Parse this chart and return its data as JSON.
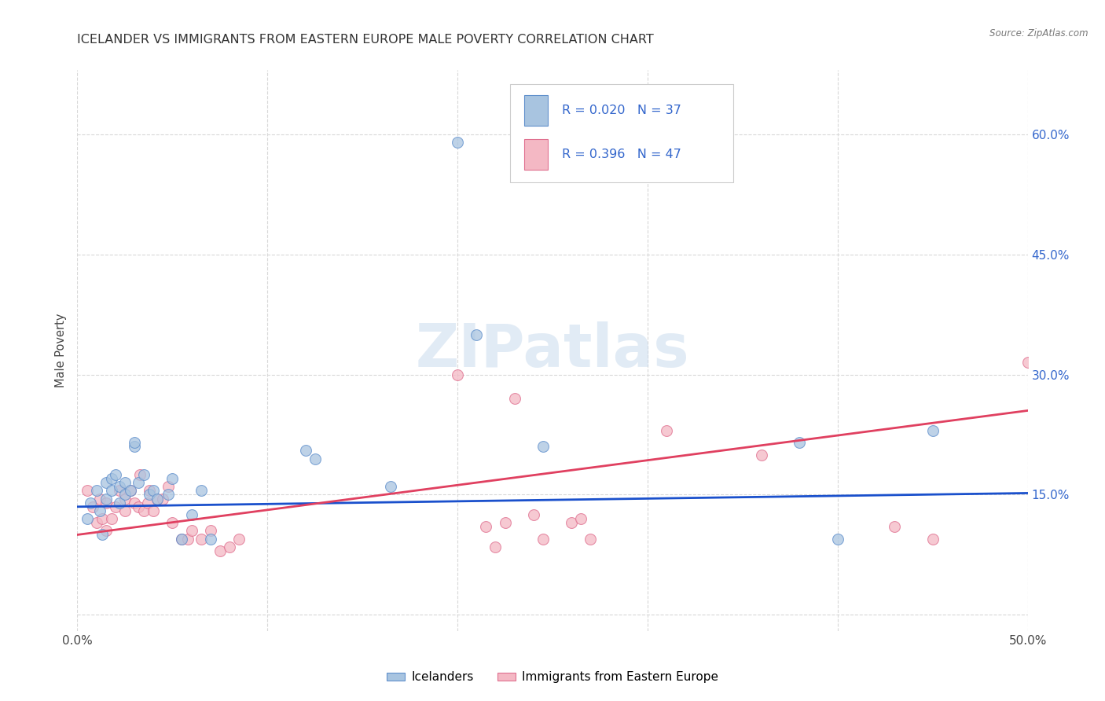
{
  "title": "ICELANDER VS IMMIGRANTS FROM EASTERN EUROPE MALE POVERTY CORRELATION CHART",
  "source": "Source: ZipAtlas.com",
  "ylabel": "Male Poverty",
  "xlim": [
    0.0,
    0.5
  ],
  "ylim": [
    -0.02,
    0.68
  ],
  "plot_ylim": [
    0.0,
    0.65
  ],
  "yticks": [
    0.0,
    0.15,
    0.3,
    0.45,
    0.6
  ],
  "xticks": [
    0.0,
    0.1,
    0.2,
    0.3,
    0.4,
    0.5
  ],
  "xtick_labels": [
    "0.0%",
    "",
    "",
    "",
    "",
    "50.0%"
  ],
  "right_ytick_labels": [
    "",
    "15.0%",
    "30.0%",
    "45.0%",
    "60.0%"
  ],
  "legend_blue_R": "R = 0.020",
  "legend_blue_N": "N = 37",
  "legend_pink_R": "R = 0.396",
  "legend_pink_N": "N = 47",
  "label_blue": "Icelanders",
  "label_pink": "Immigrants from Eastern Europe",
  "blue_color": "#a8c4e0",
  "pink_color": "#f4b8c4",
  "blue_edge_color": "#6090cc",
  "pink_edge_color": "#e07090",
  "blue_line_color": "#1a50cc",
  "pink_line_color": "#e04060",
  "legend_text_color": "#3366cc",
  "blue_scatter": [
    [
      0.005,
      0.12
    ],
    [
      0.007,
      0.14
    ],
    [
      0.01,
      0.155
    ],
    [
      0.012,
      0.13
    ],
    [
      0.013,
      0.1
    ],
    [
      0.015,
      0.165
    ],
    [
      0.015,
      0.145
    ],
    [
      0.018,
      0.17
    ],
    [
      0.018,
      0.155
    ],
    [
      0.02,
      0.175
    ],
    [
      0.022,
      0.16
    ],
    [
      0.022,
      0.14
    ],
    [
      0.025,
      0.165
    ],
    [
      0.025,
      0.15
    ],
    [
      0.028,
      0.155
    ],
    [
      0.03,
      0.21
    ],
    [
      0.03,
      0.215
    ],
    [
      0.032,
      0.165
    ],
    [
      0.035,
      0.175
    ],
    [
      0.038,
      0.15
    ],
    [
      0.04,
      0.155
    ],
    [
      0.042,
      0.145
    ],
    [
      0.048,
      0.15
    ],
    [
      0.05,
      0.17
    ],
    [
      0.055,
      0.095
    ],
    [
      0.06,
      0.125
    ],
    [
      0.065,
      0.155
    ],
    [
      0.07,
      0.095
    ],
    [
      0.12,
      0.205
    ],
    [
      0.125,
      0.195
    ],
    [
      0.165,
      0.16
    ],
    [
      0.2,
      0.59
    ],
    [
      0.21,
      0.35
    ],
    [
      0.245,
      0.21
    ],
    [
      0.38,
      0.215
    ],
    [
      0.4,
      0.095
    ],
    [
      0.45,
      0.23
    ]
  ],
  "pink_scatter": [
    [
      0.005,
      0.155
    ],
    [
      0.008,
      0.135
    ],
    [
      0.01,
      0.115
    ],
    [
      0.012,
      0.145
    ],
    [
      0.013,
      0.12
    ],
    [
      0.015,
      0.105
    ],
    [
      0.015,
      0.14
    ],
    [
      0.018,
      0.12
    ],
    [
      0.02,
      0.135
    ],
    [
      0.022,
      0.155
    ],
    [
      0.025,
      0.145
    ],
    [
      0.025,
      0.13
    ],
    [
      0.028,
      0.155
    ],
    [
      0.03,
      0.14
    ],
    [
      0.032,
      0.135
    ],
    [
      0.033,
      0.175
    ],
    [
      0.035,
      0.13
    ],
    [
      0.037,
      0.14
    ],
    [
      0.038,
      0.155
    ],
    [
      0.04,
      0.13
    ],
    [
      0.042,
      0.145
    ],
    [
      0.045,
      0.145
    ],
    [
      0.048,
      0.16
    ],
    [
      0.05,
      0.115
    ],
    [
      0.055,
      0.095
    ],
    [
      0.058,
      0.095
    ],
    [
      0.06,
      0.105
    ],
    [
      0.065,
      0.095
    ],
    [
      0.07,
      0.105
    ],
    [
      0.075,
      0.08
    ],
    [
      0.08,
      0.085
    ],
    [
      0.085,
      0.095
    ],
    [
      0.2,
      0.3
    ],
    [
      0.215,
      0.11
    ],
    [
      0.22,
      0.085
    ],
    [
      0.225,
      0.115
    ],
    [
      0.23,
      0.27
    ],
    [
      0.24,
      0.125
    ],
    [
      0.245,
      0.095
    ],
    [
      0.26,
      0.115
    ],
    [
      0.265,
      0.12
    ],
    [
      0.27,
      0.095
    ],
    [
      0.31,
      0.23
    ],
    [
      0.36,
      0.2
    ],
    [
      0.43,
      0.11
    ],
    [
      0.45,
      0.095
    ],
    [
      0.5,
      0.315
    ]
  ],
  "blue_trend": [
    0.0,
    0.5,
    0.135,
    0.152
  ],
  "pink_trend": [
    0.0,
    0.5,
    0.1,
    0.255
  ],
  "watermark_text": "ZIPatlas",
  "background_color": "#ffffff",
  "grid_color": "#d8d8d8",
  "title_fontsize": 11.5,
  "marker_size": 100
}
